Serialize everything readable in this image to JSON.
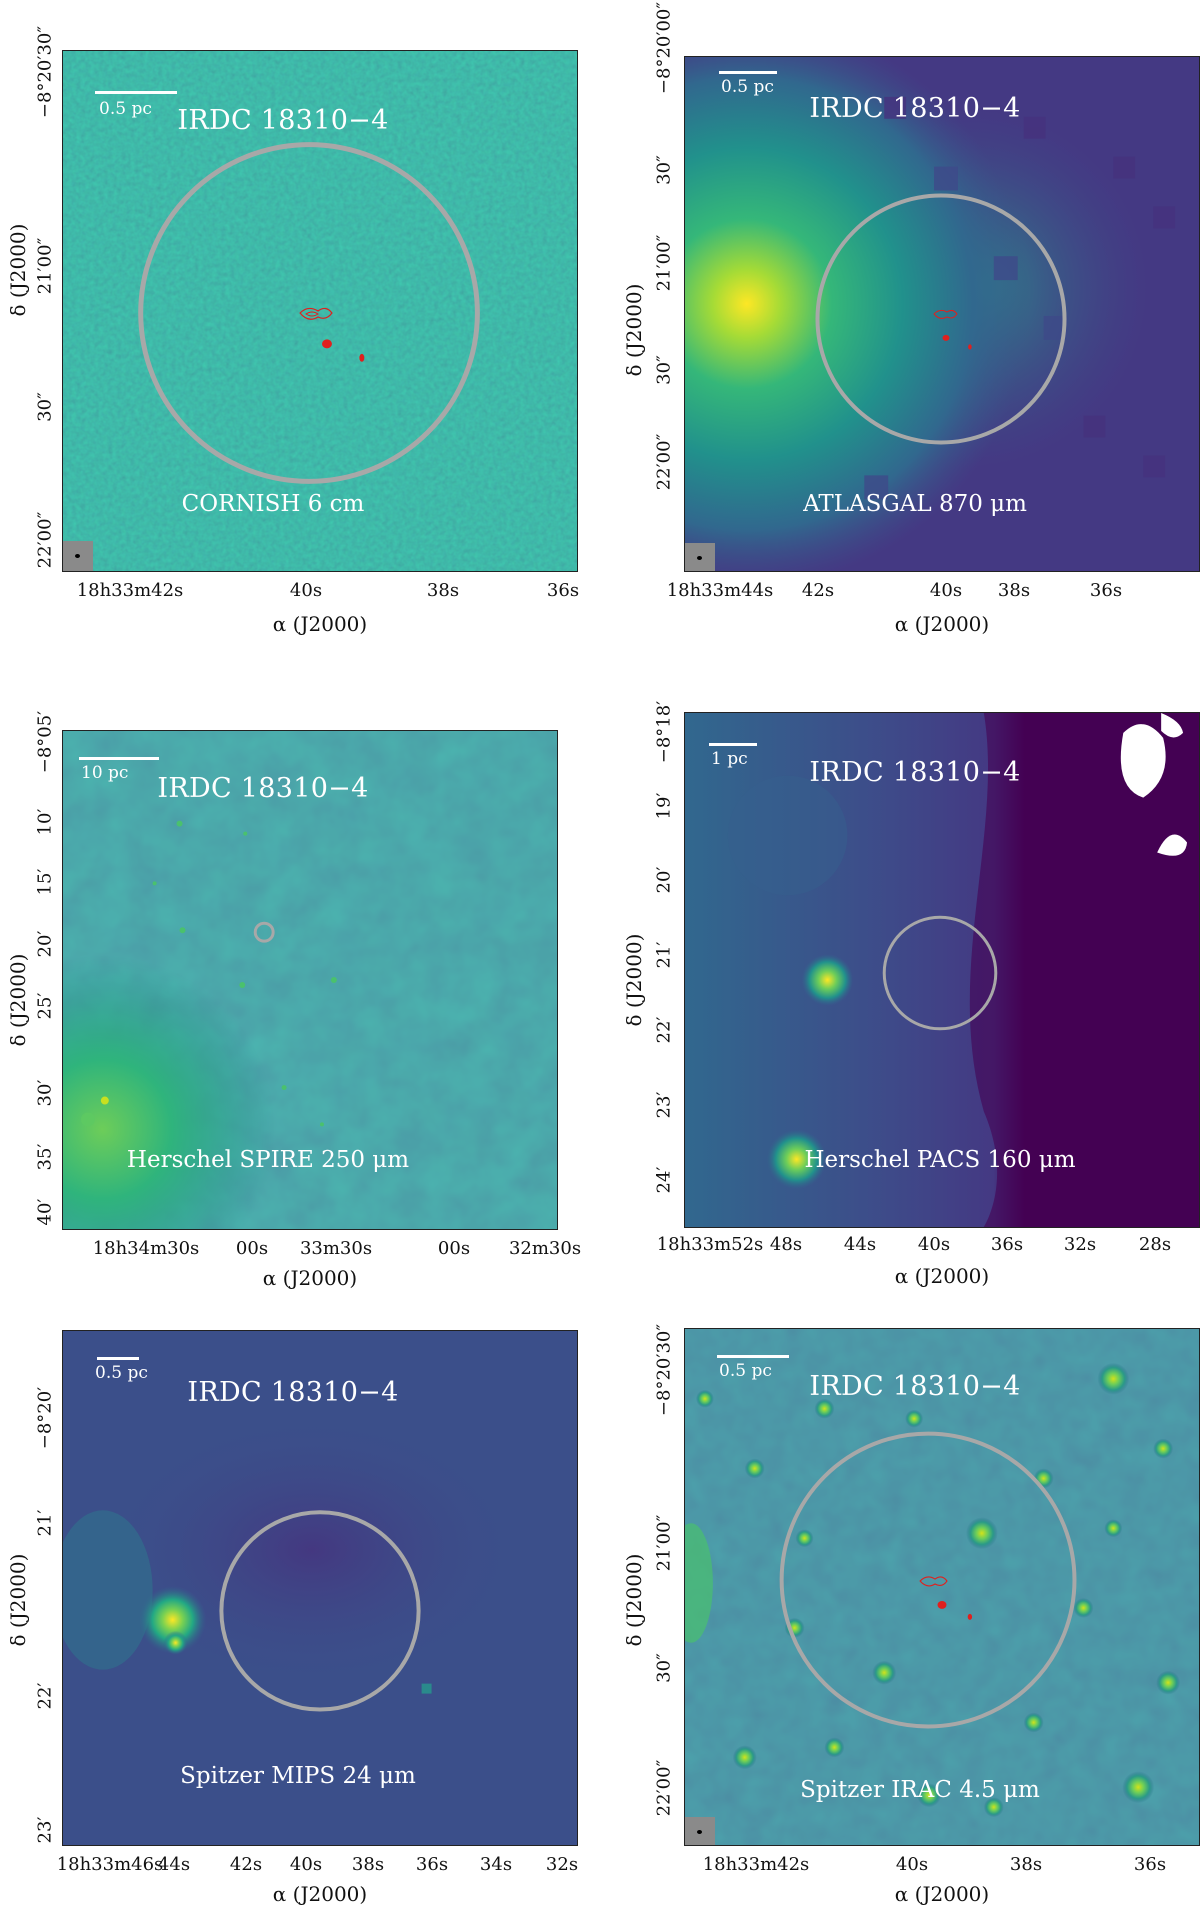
{
  "panels": [
    {
      "id": "cornish",
      "field": "IRDC 18310−4",
      "band": "CORNISH 6 cm",
      "scalebar": "0.5 pc",
      "x_ticks": [
        "18h33m42s",
        "40s",
        "38s",
        "36s"
      ],
      "y_ticks": [
        "−8°20′30″",
        "21′00″",
        "30″",
        "22′00″"
      ],
      "x_label": "α (J2000)",
      "y_label": "δ (J2000)"
    },
    {
      "id": "atlasgal",
      "field": "IRDC 18310−4",
      "band": "ATLASGAL 870 μm",
      "scalebar": "0.5 pc",
      "x_ticks": [
        "18h33m44s",
        "42s",
        "40s",
        "38s",
        "36s"
      ],
      "y_ticks": [
        "−8°20′00″",
        "30″",
        "21′00″",
        "30″",
        "22′00″"
      ],
      "x_label": "α (J2000)",
      "y_label": "δ (J2000)"
    },
    {
      "id": "spire",
      "field": "IRDC 18310−4",
      "band": "Herschel SPIRE 250 μm",
      "scalebar": "10 pc",
      "x_ticks": [
        "18h34m30s",
        "00s",
        "33m30s",
        "00s",
        "32m30s"
      ],
      "y_ticks": [
        "−8°05′",
        "10′",
        "15′",
        "20′",
        "25′",
        "30′",
        "35′",
        "40′"
      ],
      "x_label": "α (J2000)",
      "y_label": "δ (J2000)"
    },
    {
      "id": "pacs",
      "field": "IRDC 18310−4",
      "band": "Herschel PACS 160 μm",
      "scalebar": "1 pc",
      "x_ticks": [
        "18h33m52s",
        "48s",
        "44s",
        "40s",
        "36s",
        "32s",
        "28s"
      ],
      "y_ticks": [
        "−8°18′",
        "19′",
        "20′",
        "21′",
        "22′",
        "23′",
        "24′"
      ],
      "x_label": "α (J2000)",
      "y_label": "δ (J2000)"
    },
    {
      "id": "mips",
      "field": "IRDC 18310−4",
      "band": "Spitzer MIPS 24 μm",
      "scalebar": "0.5 pc",
      "x_ticks": [
        "18h33m46s",
        "44s",
        "42s",
        "40s",
        "38s",
        "36s",
        "34s",
        "32s"
      ],
      "y_ticks": [
        "−8°20′",
        "21′",
        "22′",
        "23′"
      ],
      "x_label": "α (J2000)",
      "y_label": "δ (J2000)"
    },
    {
      "id": "irac",
      "field": "IRDC 18310−4",
      "band": "Spitzer IRAC 4.5 μm",
      "scalebar": "0.5 pc",
      "x_ticks": [
        "18h33m42s",
        "40s",
        "38s",
        "36s"
      ],
      "y_ticks": [
        "−8°20′30″",
        "21′00″",
        "30″",
        "22′00″"
      ],
      "x_label": "α (J2000)",
      "y_label": "δ (J2000)"
    }
  ],
  "colors": {
    "colormap": "viridis",
    "circle": "#a8a8a8",
    "contour": "#e0201e",
    "label_text": "#ffffff"
  }
}
